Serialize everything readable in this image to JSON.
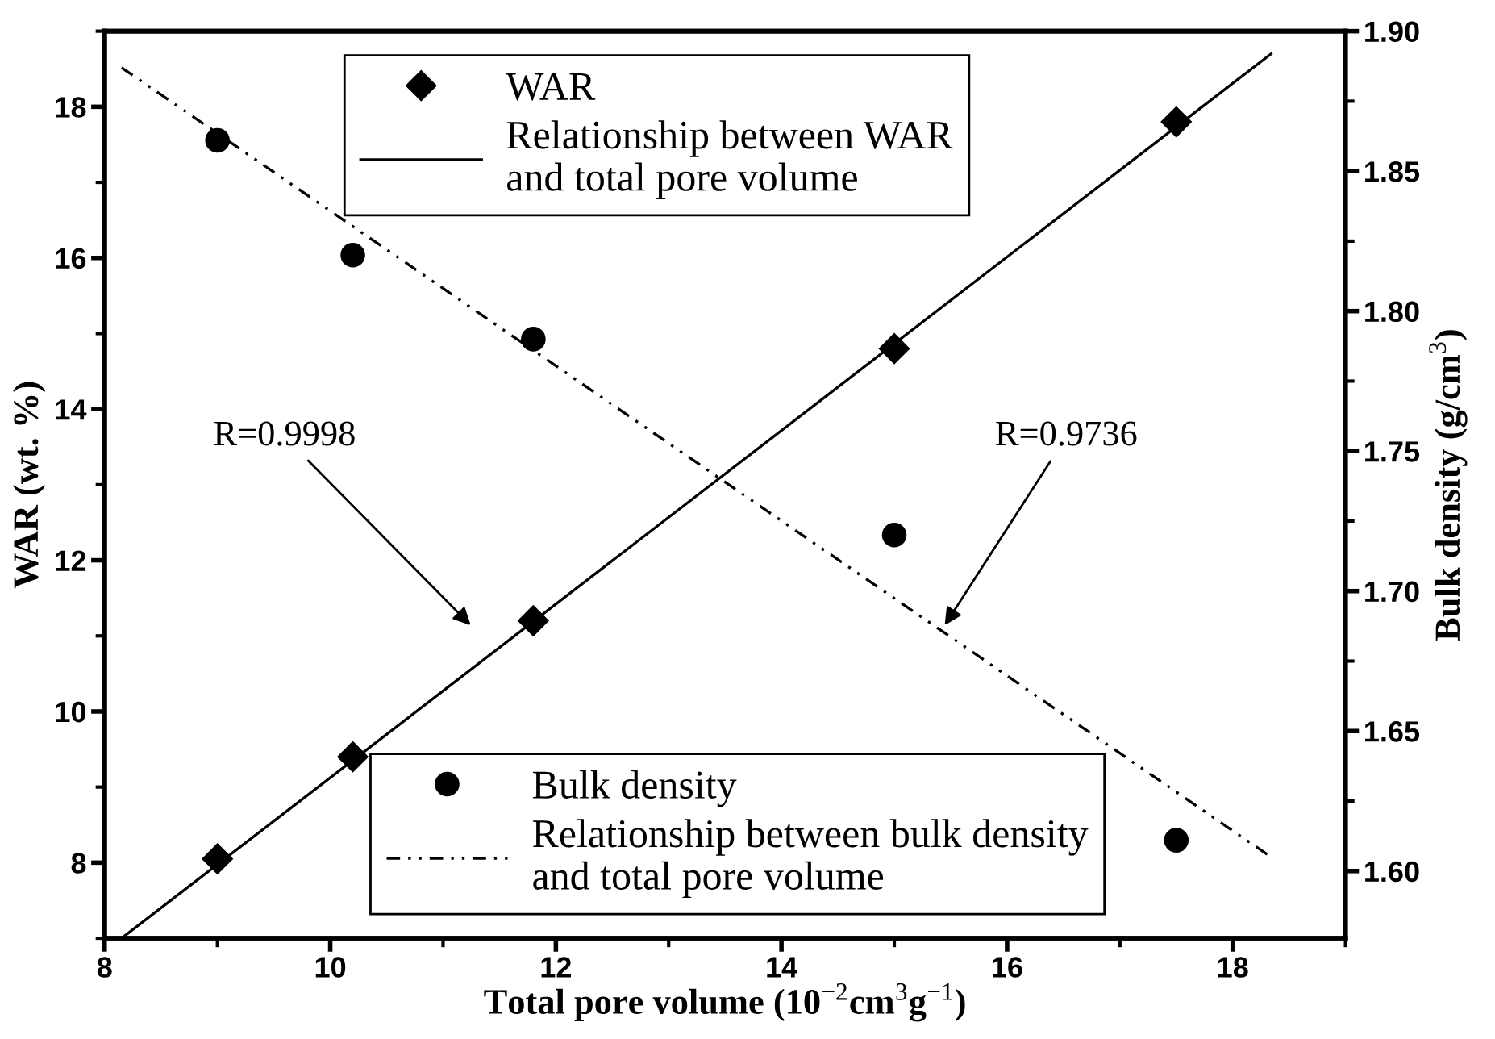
{
  "chart_data": {
    "type": "scatter",
    "xlabel": "Total pore volume (10$^{−2}$cm$^{3}$g$^{−1}$)",
    "ylabel": "WAR (wt. %)",
    "y2label": "Bulk density (g/cm$^{3}$)",
    "xlim": [
      8,
      19
    ],
    "xticks": [
      8,
      10,
      12,
      14,
      16,
      18
    ],
    "ylim": [
      7,
      19
    ],
    "yticks": [
      8,
      10,
      12,
      14,
      16,
      18
    ],
    "y2lim": [
      1.576,
      1.9
    ],
    "y2ticks": [
      {
        "value": 1.6,
        "label": "1.60"
      },
      {
        "value": 1.65,
        "label": "1.65"
      },
      {
        "value": 1.7,
        "label": "1.70"
      },
      {
        "value": 1.75,
        "label": "1.75"
      },
      {
        "value": 1.8,
        "label": "1.80"
      },
      {
        "value": 1.85,
        "label": "1.85"
      },
      {
        "value": 1.9,
        "label": "1.90"
      }
    ],
    "series": [
      {
        "name": "WAR",
        "marker": "diamond",
        "color": "#000000",
        "x": [
          9,
          10.2,
          11.8,
          15,
          17.5
        ],
        "values": [
          8.05,
          9.4,
          11.2,
          14.8,
          17.8
        ]
      },
      {
        "name": "Relationship between WAR\nand total pore volume",
        "type": "line",
        "line_style": "solid",
        "color": "#000000",
        "x": [
          8.15,
          18.34
        ],
        "values": [
          7.0,
          18.7
        ]
      },
      {
        "name": "Bulk density",
        "marker": "circle",
        "axis": "y2",
        "color": "#000000",
        "x": [
          9,
          10.2,
          11.8,
          15,
          17.5
        ],
        "values": [
          1.861,
          1.82,
          1.79,
          1.72,
          1.611
        ]
      },
      {
        "name": "Relationship between bulk density\nand total pore volume",
        "type": "line",
        "line_style": "dotted",
        "axis": "y2",
        "color": "#000000",
        "x": [
          8.15,
          18.34
        ],
        "values": [
          1.887,
          1.605
        ]
      }
    ],
    "annotations": [
      "R=0.9998",
      "R=0.9736"
    ],
    "legend": "top",
    "grid": false
  }
}
